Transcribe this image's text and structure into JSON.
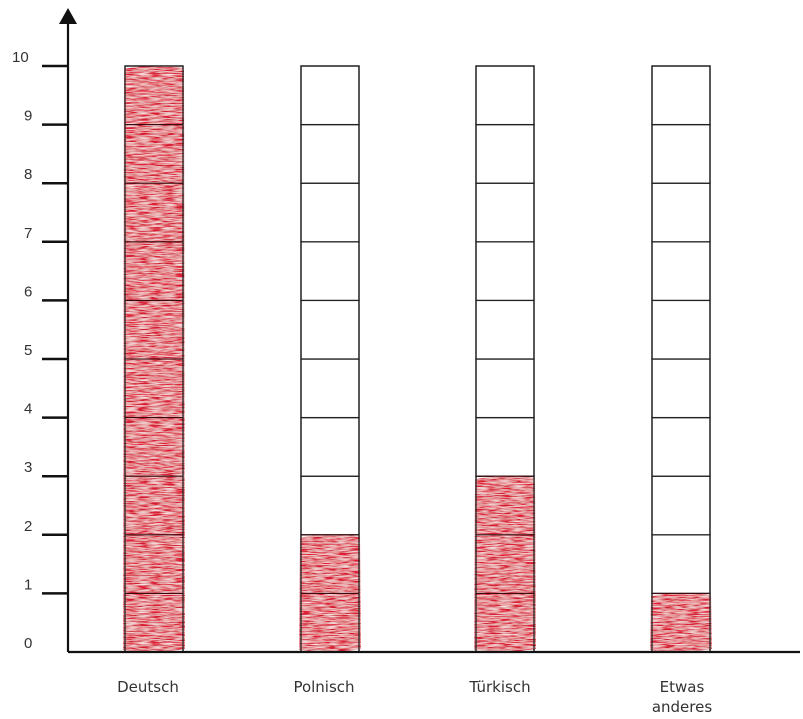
{
  "chart_data": {
    "type": "bar",
    "title": "",
    "xlabel": "",
    "ylabel": "",
    "ylim": [
      0,
      10
    ],
    "y_ticks": [
      "0",
      "1",
      "2",
      "3",
      "4",
      "5",
      "6",
      "7",
      "8",
      "9",
      "10"
    ],
    "categories": [
      "Deutsch",
      "Polnisch",
      "Türkisch",
      "Etwas anderes"
    ],
    "category_lines": [
      [
        "Deutsch"
      ],
      [
        "Polnisch"
      ],
      [
        "Türkisch"
      ],
      [
        "Etwas",
        "anderes"
      ]
    ],
    "values": [
      10,
      2,
      3,
      1
    ],
    "grid": false,
    "bar_style": "stacked-boxes",
    "fill_color": "#e0102a"
  }
}
